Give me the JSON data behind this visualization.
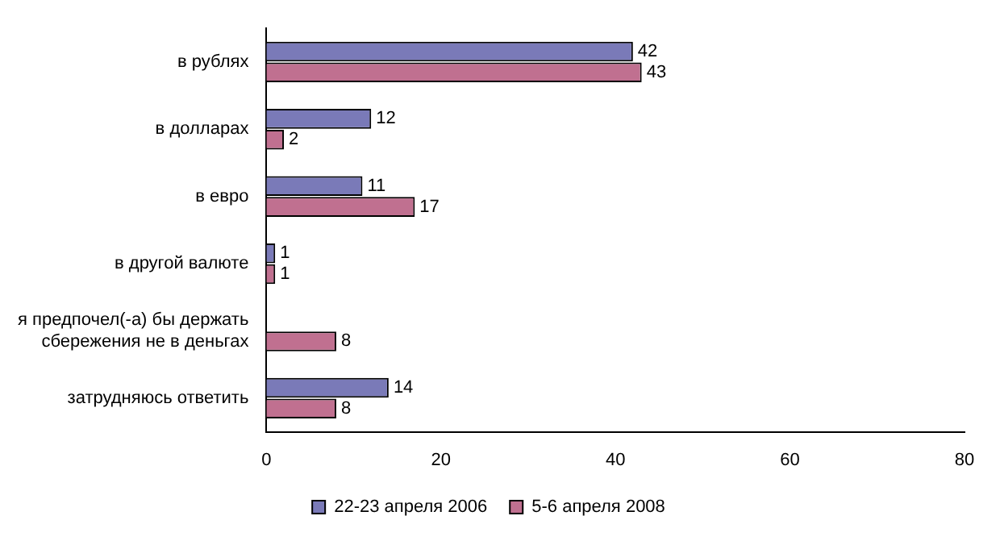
{
  "chart_data": {
    "type": "bar",
    "orientation": "horizontal",
    "categories": [
      "в рублях",
      "в долларах",
      "в евро",
      "в другой валюте",
      "я предпочел(-а) бы держать сбережения не в деньгах",
      "затрудняюсь ответить"
    ],
    "series": [
      {
        "name": "22-23 апреля 2006",
        "color": "#7a7ab8",
        "values": [
          42,
          12,
          11,
          1,
          null,
          14
        ]
      },
      {
        "name": "5-6 апреля 2008",
        "color": "#c07090",
        "values": [
          43,
          2,
          17,
          1,
          8,
          8
        ]
      }
    ],
    "xlim": [
      0,
      80
    ],
    "xticks": [
      0,
      20,
      40,
      60,
      80
    ],
    "grid": false,
    "legend": "bottom",
    "data_labels": true
  }
}
